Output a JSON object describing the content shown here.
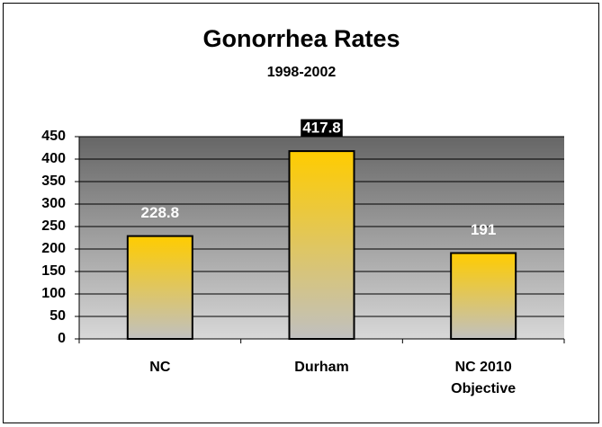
{
  "chart_data": {
    "type": "bar",
    "title": "Gonorrhea Rates",
    "subtitle": "1998-2002",
    "categories": [
      "NC",
      "Durham",
      "NC 2010 Objective"
    ],
    "values": [
      228.8,
      417.8,
      191
    ],
    "color": "#ffcc00",
    "ylim": [
      0,
      450
    ],
    "yticks": [
      0,
      50,
      100,
      150,
      200,
      250,
      300,
      350,
      400,
      450
    ],
    "grid": true
  }
}
